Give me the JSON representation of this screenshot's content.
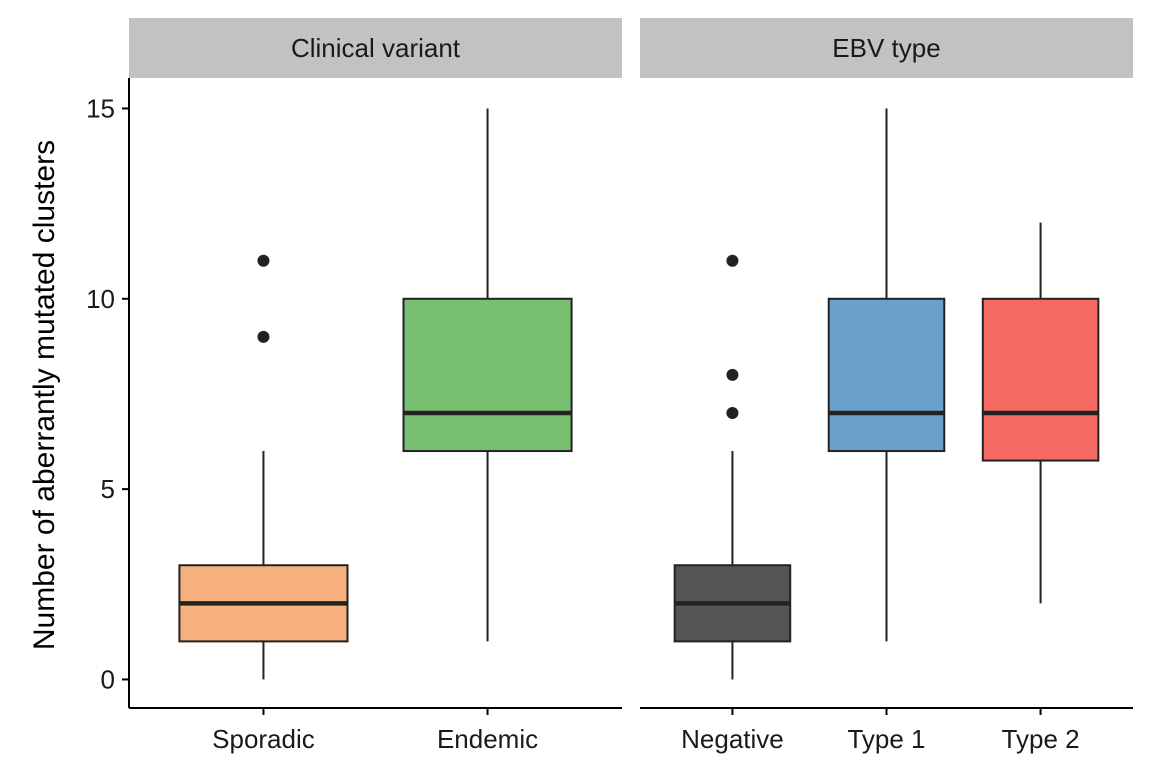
{
  "chart_data": {
    "type": "box",
    "ylabel": "Number of aberrantly mutated clusters",
    "ylim": [
      -0.75,
      15.8
    ],
    "yticks": [
      0,
      5,
      10,
      15
    ],
    "grid": false,
    "legend": "none",
    "facets": [
      {
        "label": "Clinical variant",
        "categories": [
          {
            "name": "Sporadic",
            "color": "#F6B17E",
            "whisker_low": 0,
            "q1": 1,
            "median": 2,
            "q3": 3,
            "whisker_high": 6,
            "outliers": [
              9,
              11
            ]
          },
          {
            "name": "Endemic",
            "color": "#79BF71",
            "whisker_low": 1,
            "q1": 6,
            "median": 7,
            "q3": 10,
            "whisker_high": 15,
            "outliers": []
          }
        ]
      },
      {
        "label": "EBV type",
        "categories": [
          {
            "name": "Negative",
            "color": "#555555",
            "whisker_low": 0,
            "q1": 1,
            "median": 2,
            "q3": 3,
            "whisker_high": 6,
            "outliers": [
              7,
              8,
              11
            ]
          },
          {
            "name": "Type 1",
            "color": "#6AA1CC",
            "whisker_low": 1,
            "q1": 6,
            "median": 7,
            "q3": 10,
            "whisker_high": 15,
            "outliers": []
          },
          {
            "name": "Type 2",
            "color": "#F76A63",
            "whisker_low": 2,
            "q1": 5.75,
            "median": 7,
            "q3": 10,
            "whisker_high": 12,
            "outliers": []
          }
        ]
      }
    ]
  }
}
